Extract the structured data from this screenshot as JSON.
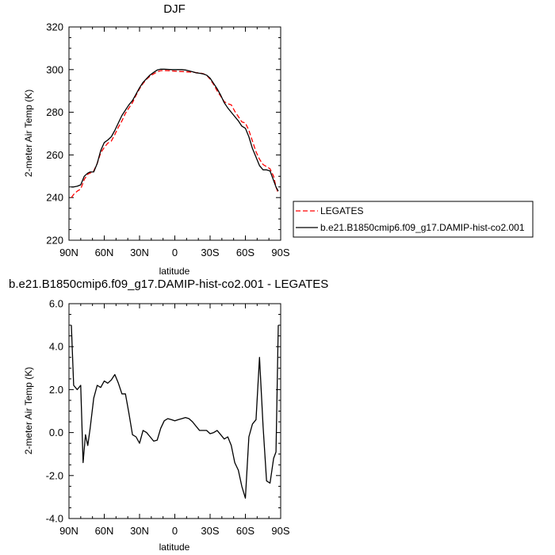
{
  "chart_data": [
    {
      "type": "line",
      "title": "DJF",
      "xlabel": "latitude",
      "ylabel": "2-meter Air Temp (K)",
      "xlim": [
        90,
        -90
      ],
      "ylim": [
        220,
        320
      ],
      "x_ticks": [
        90,
        60,
        30,
        0,
        -30,
        -60,
        -90
      ],
      "x_tick_labels": [
        "90N",
        "60N",
        "30N",
        "0",
        "30S",
        "60S",
        "90S"
      ],
      "y_ticks": [
        220,
        240,
        260,
        280,
        300,
        320
      ],
      "y_tick_labels": [
        "220",
        "240",
        "260",
        "280",
        "300",
        "320"
      ],
      "legend": {
        "placement": "outside-right",
        "entries": [
          "LEGATES",
          "b.e21.B1850cmip6.f09_g17.DAMIP-hist-co2.001"
        ]
      },
      "series": [
        {
          "name": "LEGATES",
          "style": "dashed",
          "color": "#ff0000",
          "x": [
            88,
            86,
            83,
            80,
            77,
            74,
            72,
            69,
            66,
            63,
            60,
            57,
            54,
            51,
            48,
            45,
            42,
            39,
            36,
            33,
            30,
            27,
            24,
            21,
            18,
            15,
            12,
            9,
            6,
            3,
            0,
            -3,
            -6,
            -9,
            -12,
            -15,
            -18,
            -21,
            -24,
            -27,
            -30,
            -33,
            -36,
            -39,
            -42,
            -45,
            -48,
            -51,
            -54,
            -57,
            -60,
            -63,
            -66,
            -69,
            -72,
            -75,
            -78,
            -81,
            -84,
            -86,
            -88
          ],
          "y": [
            240.0,
            241.5,
            243.0,
            244.0,
            248.5,
            251.0,
            251.5,
            252.5,
            256.0,
            261.0,
            263.5,
            265.5,
            266.5,
            269.5,
            273.0,
            276.0,
            279.5,
            282.0,
            284.5,
            288.0,
            291.0,
            293.5,
            295.5,
            297.0,
            298.0,
            299.0,
            299.5,
            299.6,
            299.5,
            299.4,
            299.3,
            299.2,
            299.1,
            299.0,
            298.9,
            298.8,
            298.6,
            298.4,
            298.1,
            297.4,
            295.5,
            293.0,
            290.0,
            287.5,
            285.0,
            284.0,
            283.5,
            280.5,
            278.0,
            275.5,
            275.0,
            271.5,
            266.5,
            261.5,
            258.0,
            255.5,
            254.5,
            253.5,
            250.0,
            245.0,
            242.0
          ]
        },
        {
          "name": "b.e21.B1850cmip6.f09_g17.DAMIP-hist-co2.001",
          "style": "solid",
          "color": "#000000",
          "x": [
            88,
            86,
            83,
            80,
            77,
            74,
            72,
            69,
            66,
            63,
            60,
            57,
            54,
            51,
            48,
            45,
            42,
            39,
            36,
            33,
            30,
            27,
            24,
            21,
            18,
            15,
            12,
            9,
            6,
            3,
            0,
            -3,
            -6,
            -9,
            -12,
            -15,
            -18,
            -21,
            -24,
            -27,
            -30,
            -33,
            -36,
            -39,
            -42,
            -45,
            -48,
            -51,
            -54,
            -57,
            -60,
            -63,
            -66,
            -69,
            -72,
            -75,
            -78,
            -81,
            -84,
            -86,
            -88
          ],
          "y": [
            245.0,
            245.0,
            245.3,
            246.0,
            250.0,
            251.5,
            252.0,
            252.0,
            256.0,
            262.0,
            265.8,
            267.0,
            268.5,
            271.5,
            275.0,
            278.5,
            281.0,
            283.5,
            285.5,
            288.5,
            291.5,
            294.0,
            295.8,
            297.5,
            298.7,
            299.8,
            300.2,
            300.2,
            300.1,
            300.0,
            300.0,
            300.0,
            300.0,
            299.8,
            299.4,
            299.0,
            298.5,
            298.3,
            298.0,
            297.4,
            296.0,
            293.5,
            291.0,
            288.0,
            284.5,
            282.0,
            280.0,
            278.0,
            276.0,
            273.5,
            272.5,
            268.5,
            263.0,
            259.0,
            255.0,
            253.0,
            253.0,
            252.5,
            248.0,
            245.0,
            243.0
          ]
        }
      ]
    },
    {
      "type": "line",
      "title": "b.e21.B1850cmip6.f09_g17.DAMIP-hist-co2.001 - LEGATES",
      "xlabel": "latitude",
      "ylabel": "2-meter Air Temp (K)",
      "xlim": [
        90,
        -90
      ],
      "ylim": [
        -4.0,
        6.0
      ],
      "x_ticks": [
        90,
        60,
        30,
        0,
        -30,
        -60,
        -90
      ],
      "x_tick_labels": [
        "90N",
        "60N",
        "30N",
        "0",
        "30S",
        "60S",
        "90S"
      ],
      "y_ticks": [
        -4.0,
        -2.0,
        0.0,
        2.0,
        4.0,
        6.0
      ],
      "y_tick_labels": [
        "-4.0",
        "-2.0",
        "0.0",
        "2.0",
        "4.0",
        "6.0"
      ],
      "series": [
        {
          "style": "solid",
          "color": "#000000",
          "x": [
            88,
            86,
            83,
            80,
            78,
            76,
            74,
            72,
            69,
            66,
            63,
            60,
            57,
            54,
            51,
            48,
            45,
            42,
            39,
            36,
            33,
            30,
            27,
            24,
            21,
            18,
            15,
            12,
            9,
            6,
            3,
            0,
            -3,
            -6,
            -9,
            -12,
            -15,
            -18,
            -21,
            -24,
            -27,
            -30,
            -33,
            -36,
            -39,
            -42,
            -45,
            -48,
            -51,
            -54,
            -57,
            -60,
            -63,
            -66,
            -69,
            -72,
            -75,
            -78,
            -81,
            -84,
            -86,
            -88
          ],
          "y": [
            5.0,
            2.2,
            2.0,
            2.2,
            -1.4,
            -0.1,
            -0.6,
            0.2,
            1.6,
            2.2,
            2.1,
            2.4,
            2.3,
            2.45,
            2.7,
            2.3,
            1.8,
            1.8,
            0.9,
            -0.1,
            -0.2,
            -0.5,
            0.1,
            0.0,
            -0.2,
            -0.4,
            -0.35,
            0.2,
            0.55,
            0.65,
            0.6,
            0.55,
            0.6,
            0.65,
            0.7,
            0.65,
            0.5,
            0.3,
            0.1,
            0.1,
            0.1,
            -0.05,
            0.0,
            0.1,
            -0.1,
            -0.3,
            -0.2,
            -0.6,
            -1.4,
            -1.75,
            -2.5,
            -3.05,
            -0.2,
            0.4,
            0.6,
            3.5,
            0.3,
            -2.25,
            -2.35,
            -1.2,
            -0.9,
            5.0
          ]
        }
      ]
    }
  ]
}
